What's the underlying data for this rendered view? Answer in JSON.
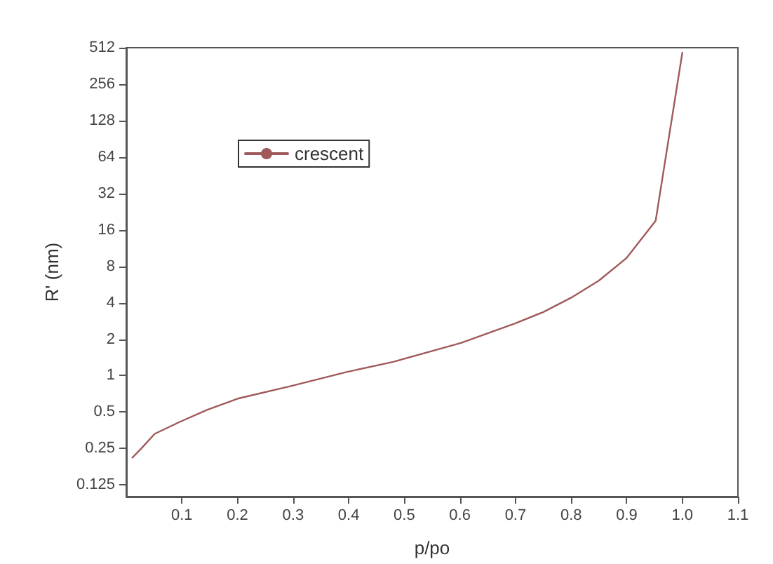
{
  "chart_data": {
    "type": "line",
    "xlabel": "p/po",
    "ylabel": "R' (nm)",
    "log": "y",
    "grid": false,
    "legend": "top left",
    "marker": "none",
    "line_style": "solid",
    "xlim": [
      0,
      1.1
    ],
    "xticks": [
      0.1,
      0.2,
      0.3,
      0.4,
      0.5,
      0.6,
      0.7,
      0.8,
      0.9,
      {
        "value": 1,
        "label": "1.0"
      },
      1.1
    ],
    "ylim": [
      0.1,
      512
    ],
    "yticks": [
      0.125,
      0.25,
      0.5,
      1,
      2,
      4,
      8,
      16,
      32,
      64,
      128,
      256,
      512
    ],
    "series": [
      {
        "name": "crescent",
        "color": "#a05a5a",
        "x": [
          0.011,
          0.027,
          0.051,
          0.094,
          0.145,
          0.203,
          0.296,
          0.396,
          0.48,
          0.602,
          0.699,
          0.75,
          0.8,
          0.85,
          0.9,
          0.952,
          1.0
        ],
        "values": [
          0.21,
          0.25,
          0.33,
          0.41,
          0.52,
          0.65,
          0.82,
          1.07,
          1.3,
          1.86,
          2.7,
          3.35,
          4.4,
          6.1,
          9.4,
          19,
          465
        ]
      }
    ]
  }
}
